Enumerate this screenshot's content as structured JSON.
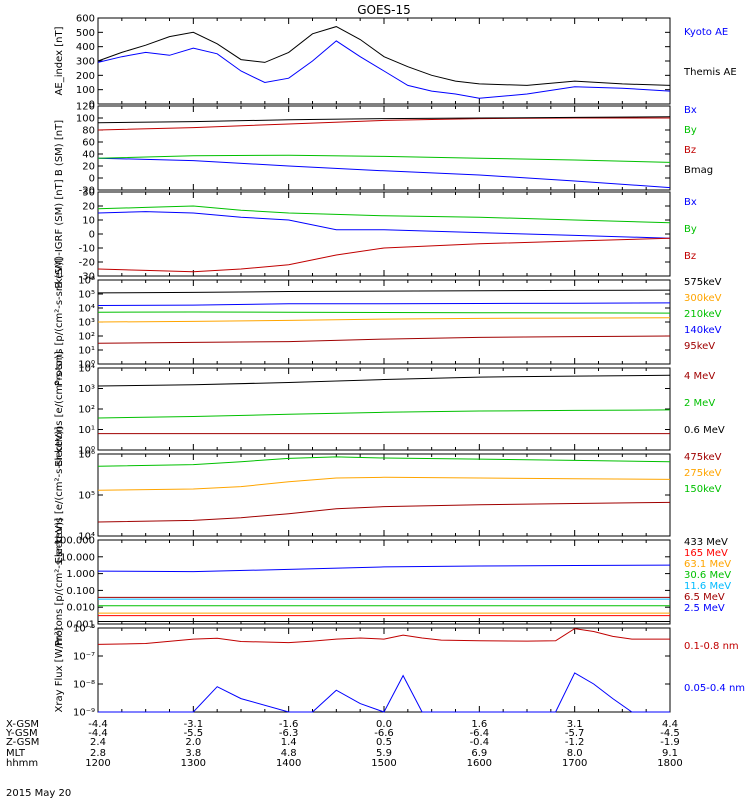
{
  "title": "GOES-15",
  "date_label": "2015 May 20",
  "time_axis": {
    "row_labels": [
      "X-GSM",
      "Y-GSM",
      "Z-GSM",
      "MLT",
      "hhmm"
    ],
    "columns": [
      {
        "values": [
          "-4.4",
          "-4.4",
          "2.4",
          "2.8",
          "1200"
        ]
      },
      {
        "values": [
          "-3.1",
          "-5.5",
          "2.0",
          "3.8",
          "1300"
        ]
      },
      {
        "values": [
          "-1.6",
          "-6.3",
          "1.4",
          "4.8",
          "1400"
        ]
      },
      {
        "values": [
          "0.0",
          "-6.6",
          "0.5",
          "5.9",
          "1500"
        ]
      },
      {
        "values": [
          "1.6",
          "-6.4",
          "-0.4",
          "6.9",
          "1600"
        ]
      },
      {
        "values": [
          "3.1",
          "-5.7",
          "-1.2",
          "8.0",
          "1700"
        ]
      },
      {
        "values": [
          "4.4",
          "-4.5",
          "-1.9",
          "9.1",
          "1800"
        ]
      }
    ]
  },
  "chart_data": [
    {
      "type": "line",
      "ylabel": "AE_index [nT]",
      "ylim": [
        0,
        600
      ],
      "ticks": [
        "0",
        "100",
        "200",
        "300",
        "400",
        "500",
        "600"
      ],
      "x": [
        12.0,
        12.25,
        12.5,
        12.75,
        13.0,
        13.25,
        13.5,
        13.75,
        14.0,
        14.25,
        14.5,
        14.75,
        15.0,
        15.25,
        15.5,
        15.75,
        16.0,
        16.5,
        17.0,
        17.5,
        18.0
      ],
      "series": [
        {
          "name": "Kyoto AE",
          "color": "#0000ff",
          "values": [
            290,
            330,
            360,
            340,
            390,
            350,
            230,
            150,
            180,
            300,
            440,
            330,
            230,
            130,
            90,
            70,
            40,
            70,
            120,
            110,
            90
          ]
        },
        {
          "name": "Themis AE",
          "color": "#000000",
          "values": [
            300,
            360,
            410,
            470,
            500,
            420,
            310,
            290,
            360,
            490,
            540,
            450,
            330,
            260,
            200,
            160,
            140,
            130,
            160,
            140,
            130
          ]
        }
      ]
    },
    {
      "type": "line",
      "ylabel": "B (SM) [nT]",
      "ylim": [
        -20,
        120
      ],
      "ticks": [
        "-20",
        "0",
        "20",
        "40",
        "60",
        "80",
        "100",
        "120"
      ],
      "x": [
        12.0,
        13.0,
        14.0,
        15.0,
        16.0,
        17.0,
        18.0
      ],
      "series": [
        {
          "name": "Bx",
          "color": "#0000ff",
          "values": [
            33,
            29,
            20,
            12,
            5,
            -5,
            -16
          ]
        },
        {
          "name": "By",
          "color": "#00c000",
          "values": [
            33,
            37,
            38,
            36,
            33,
            30,
            26
          ]
        },
        {
          "name": "Bz",
          "color": "#c00000",
          "values": [
            80,
            84,
            90,
            96,
            99,
            100,
            100
          ]
        },
        {
          "name": "Bmag",
          "color": "#000000",
          "values": [
            92,
            94,
            97,
            99,
            100,
            101,
            102
          ]
        }
      ]
    },
    {
      "type": "line",
      "ylabel": "B (SM)-IGRF (SM) [nT]",
      "ylim": [
        -30,
        30
      ],
      "ticks": [
        "-30",
        "-20",
        "-10",
        "0",
        "10",
        "20",
        "30"
      ],
      "x": [
        12.0,
        12.5,
        13.0,
        13.5,
        14.0,
        14.5,
        15.0,
        16.0,
        17.0,
        18.0
      ],
      "series": [
        {
          "name": "Bx",
          "color": "#0000ff",
          "values": [
            15,
            16,
            15,
            12,
            10,
            3,
            3,
            1,
            -1,
            -3
          ]
        },
        {
          "name": "By",
          "color": "#00c000",
          "values": [
            18,
            19,
            20,
            17,
            15,
            14,
            13,
            12,
            10,
            8
          ]
        },
        {
          "name": "Bz",
          "color": "#c00000",
          "values": [
            -25,
            -26,
            -27,
            -25,
            -22,
            -15,
            -10,
            -7,
            -5,
            -3
          ]
        }
      ]
    },
    {
      "type": "line",
      "ylabel": "Protons [p/(cm²-s-sr-keV)]",
      "yscale": "log",
      "ylim": [
        1,
        1000000
      ],
      "ticks": [
        "10⁰",
        "10¹",
        "10²",
        "10³",
        "10⁴",
        "10⁵",
        "10⁶"
      ],
      "x": [
        12.0,
        13.0,
        14.0,
        15.0,
        16.0,
        17.0,
        18.0
      ],
      "series": [
        {
          "name": "575keV",
          "color": "#000000",
          "values": [
            120000,
            130000,
            150000,
            160000,
            170000,
            180000,
            190000
          ]
        },
        {
          "name": "300keV",
          "color": "#ffa500",
          "values": [
            1000,
            1100,
            1300,
            1600,
            1800,
            1900,
            2000
          ]
        },
        {
          "name": "210keV",
          "color": "#00c000",
          "values": [
            5000,
            5200,
            5000,
            4800,
            4600,
            4500,
            4300
          ]
        },
        {
          "name": "140keV",
          "color": "#0000ff",
          "values": [
            15000,
            16000,
            20000,
            20000,
            21000,
            22000,
            23000
          ]
        },
        {
          "name": "95keV",
          "color": "#a00000",
          "values": [
            30,
            35,
            40,
            60,
            80,
            90,
            100
          ]
        }
      ]
    },
    {
      "type": "line",
      "ylabel": "Electrons [e/(cm²-s-sr)]",
      "yscale": "log",
      "ylim": [
        1,
        100000
      ],
      "ticks": [
        "10⁰",
        "10¹",
        "10²",
        "10³",
        "10⁴"
      ],
      "x": [
        12.0,
        13.0,
        14.0,
        15.0,
        16.0,
        17.0,
        18.0
      ],
      "series": [
        {
          "name": "4 MeV",
          "color": "#a00000",
          "values": [
            10,
            10,
            10,
            10,
            10,
            10,
            10
          ]
        },
        {
          "name": "2 MeV",
          "color": "#00c000",
          "values": [
            90,
            110,
            150,
            200,
            240,
            260,
            280
          ]
        },
        {
          "name": "0.6 MeV",
          "color": "#000000",
          "values": [
            8000,
            9500,
            13000,
            20000,
            28000,
            32000,
            36000
          ]
        }
      ]
    },
    {
      "type": "line",
      "ylabel": "Electrons [e/(cm²-s-sr-keV)]",
      "yscale": "log",
      "ylim": [
        10000,
        1000000
      ],
      "ticks": [
        "10⁴",
        "10⁵",
        "10⁶"
      ],
      "x": [
        12.0,
        13.0,
        13.5,
        14.0,
        14.5,
        15.0,
        16.0,
        17.0,
        18.0
      ],
      "series": [
        {
          "name": "475keV",
          "color": "#a00000",
          "values": [
            22000,
            24000,
            28000,
            35000,
            46000,
            52000,
            58000,
            62000,
            66000
          ]
        },
        {
          "name": "275keV",
          "color": "#ffa500",
          "values": [
            130000,
            140000,
            160000,
            210000,
            260000,
            270000,
            260000,
            250000,
            240000
          ]
        },
        {
          "name": "150keV",
          "color": "#00c000",
          "values": [
            500000,
            550000,
            650000,
            780000,
            850000,
            800000,
            750000,
            700000,
            650000
          ]
        }
      ]
    },
    {
      "type": "line",
      "ylabel": "Protons [p/(cm²-s-sr-keV)]",
      "yscale": "log",
      "ylim": [
        0.001,
        1000
      ],
      "ticks": [
        "0.001",
        "0.010",
        "0.100",
        "1.000",
        "10.000",
        "100.000"
      ],
      "x": [
        12.0,
        13.0,
        14.0,
        15.0,
        16.0,
        17.0,
        18.0
      ],
      "series": [
        {
          "name": "433 MeV",
          "color": "#000000",
          "values": [
            0.0015,
            0.0015,
            0.0015,
            0.0015,
            0.0015,
            0.0015,
            0.0015
          ]
        },
        {
          "name": "165 MeV",
          "color": "#ff0000",
          "values": [
            0.004,
            0.004,
            0.004,
            0.004,
            0.004,
            0.004,
            0.004
          ]
        },
        {
          "name": "63.1 MeV",
          "color": "#ffa500",
          "values": [
            0.006,
            0.006,
            0.006,
            0.006,
            0.006,
            0.006,
            0.006
          ]
        },
        {
          "name": "30.6 MeV",
          "color": "#00c000",
          "values": [
            0.02,
            0.02,
            0.02,
            0.02,
            0.02,
            0.02,
            0.02
          ]
        },
        {
          "name": "11.6 MeV",
          "color": "#00bbff",
          "values": [
            0.06,
            0.06,
            0.06,
            0.06,
            0.06,
            0.06,
            0.06
          ]
        },
        {
          "name": "6.5 MeV",
          "color": "#a00000",
          "values": [
            0.08,
            0.08,
            0.08,
            0.08,
            0.08,
            0.08,
            0.08
          ]
        },
        {
          "name": "2.5 MeV",
          "color": "#0000ff",
          "values": [
            6.0,
            5.5,
            8.0,
            12.0,
            14.0,
            15.0,
            16.0
          ]
        }
      ]
    },
    {
      "type": "line",
      "ylabel": "Xray Flux [W/m²]",
      "yscale": "log",
      "ylim": [
        1e-09,
        1e-06
      ],
      "ticks": [
        "10⁻⁹",
        "10⁻⁸",
        "10⁻⁷",
        "10⁻⁶"
      ],
      "x": [
        12.0,
        12.5,
        13.0,
        13.25,
        13.5,
        14.0,
        14.25,
        14.5,
        14.75,
        15.0,
        15.2,
        15.4,
        15.6,
        16.0,
        16.5,
        16.8,
        17.0,
        17.2,
        17.4,
        17.6,
        18.0
      ],
      "series": [
        {
          "name": "0.1-0.8 nm",
          "color": "#c00000",
          "values": [
            2.6e-07,
            2.8e-07,
            4e-07,
            4.3e-07,
            3.3e-07,
            3e-07,
            3.4e-07,
            4e-07,
            4.4e-07,
            4e-07,
            5.6e-07,
            4.4e-07,
            3.7e-07,
            3.5e-07,
            3.4e-07,
            3.5e-07,
            9.5e-07,
            7.5e-07,
            5e-07,
            4e-07,
            4e-07
          ]
        },
        {
          "name": "0.05-0.4 nm",
          "color": "#0000ff",
          "values": [
            1e-09,
            1e-09,
            1e-09,
            8e-09,
            3e-09,
            1e-09,
            1e-09,
            6e-09,
            2e-09,
            1e-09,
            2e-08,
            1e-09,
            1e-09,
            1e-09,
            1e-09,
            1e-09,
            2.5e-08,
            1e-08,
            3e-09,
            1e-09,
            1e-09
          ]
        }
      ]
    }
  ]
}
